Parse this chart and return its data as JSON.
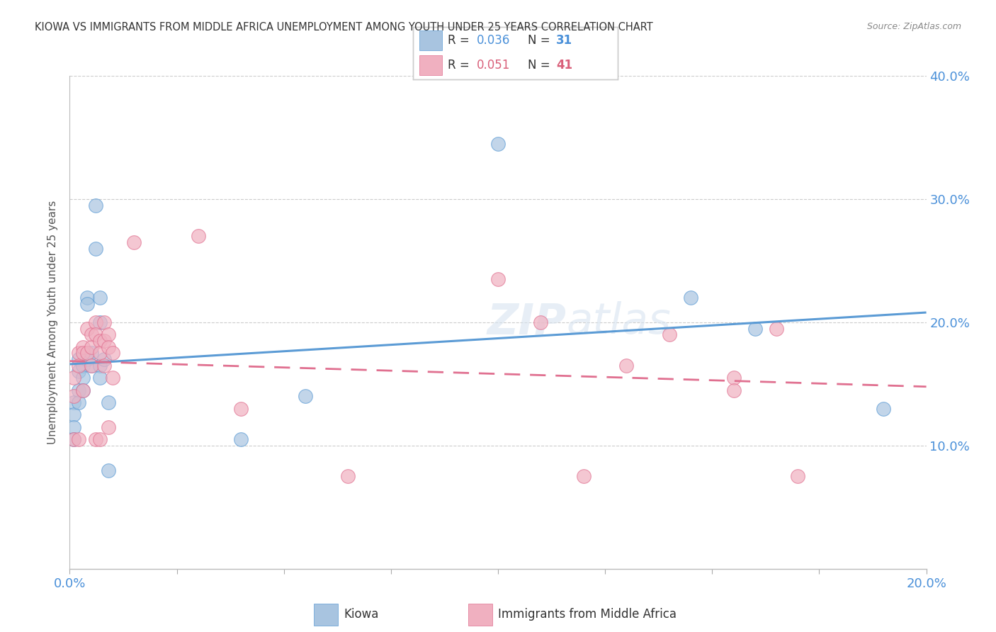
{
  "title": "KIOWA VS IMMIGRANTS FROM MIDDLE AFRICA UNEMPLOYMENT AMONG YOUTH UNDER 25 YEARS CORRELATION CHART",
  "source": "Source: ZipAtlas.com",
  "ylabel": "Unemployment Among Youth under 25 years",
  "legend_r_blue": "0.036",
  "legend_n_blue": "31",
  "legend_r_pink": "0.051",
  "legend_n_pink": "41",
  "xlim": [
    0.0,
    0.2
  ],
  "ylim": [
    0.0,
    0.4
  ],
  "color_blue": "#a8c4e0",
  "color_pink": "#f0b0c0",
  "color_blue_line": "#5b9bd5",
  "color_pink_line": "#e07090",
  "color_blue_text": "#4a90d9",
  "color_pink_text": "#d9607a",
  "watermark": "ZIPatlas",
  "kiowa_x": [
    0.001,
    0.001,
    0.001,
    0.001,
    0.002,
    0.002,
    0.002,
    0.002,
    0.003,
    0.003,
    0.003,
    0.004,
    0.004,
    0.004,
    0.005,
    0.005,
    0.006,
    0.006,
    0.007,
    0.007,
    0.007,
    0.007,
    0.008,
    0.009,
    0.009,
    0.04,
    0.055,
    0.1,
    0.145,
    0.16,
    0.19
  ],
  "kiowa_y": [
    0.135,
    0.125,
    0.115,
    0.105,
    0.17,
    0.16,
    0.145,
    0.135,
    0.165,
    0.155,
    0.145,
    0.22,
    0.215,
    0.17,
    0.175,
    0.165,
    0.295,
    0.26,
    0.22,
    0.2,
    0.165,
    0.155,
    0.17,
    0.135,
    0.08,
    0.105,
    0.14,
    0.345,
    0.22,
    0.195,
    0.13
  ],
  "africa_x": [
    0.001,
    0.001,
    0.001,
    0.002,
    0.002,
    0.002,
    0.003,
    0.003,
    0.003,
    0.004,
    0.004,
    0.005,
    0.005,
    0.005,
    0.006,
    0.006,
    0.006,
    0.007,
    0.007,
    0.007,
    0.008,
    0.008,
    0.008,
    0.009,
    0.009,
    0.009,
    0.01,
    0.01,
    0.015,
    0.03,
    0.04,
    0.065,
    0.1,
    0.11,
    0.12,
    0.13,
    0.14,
    0.155,
    0.155,
    0.165,
    0.17
  ],
  "africa_y": [
    0.155,
    0.14,
    0.105,
    0.175,
    0.165,
    0.105,
    0.18,
    0.175,
    0.145,
    0.195,
    0.175,
    0.19,
    0.18,
    0.165,
    0.2,
    0.19,
    0.105,
    0.185,
    0.175,
    0.105,
    0.2,
    0.185,
    0.165,
    0.19,
    0.18,
    0.115,
    0.175,
    0.155,
    0.265,
    0.27,
    0.13,
    0.075,
    0.235,
    0.2,
    0.075,
    0.165,
    0.19,
    0.155,
    0.145,
    0.195,
    0.075
  ],
  "background_color": "#ffffff",
  "grid_color": "#cccccc"
}
